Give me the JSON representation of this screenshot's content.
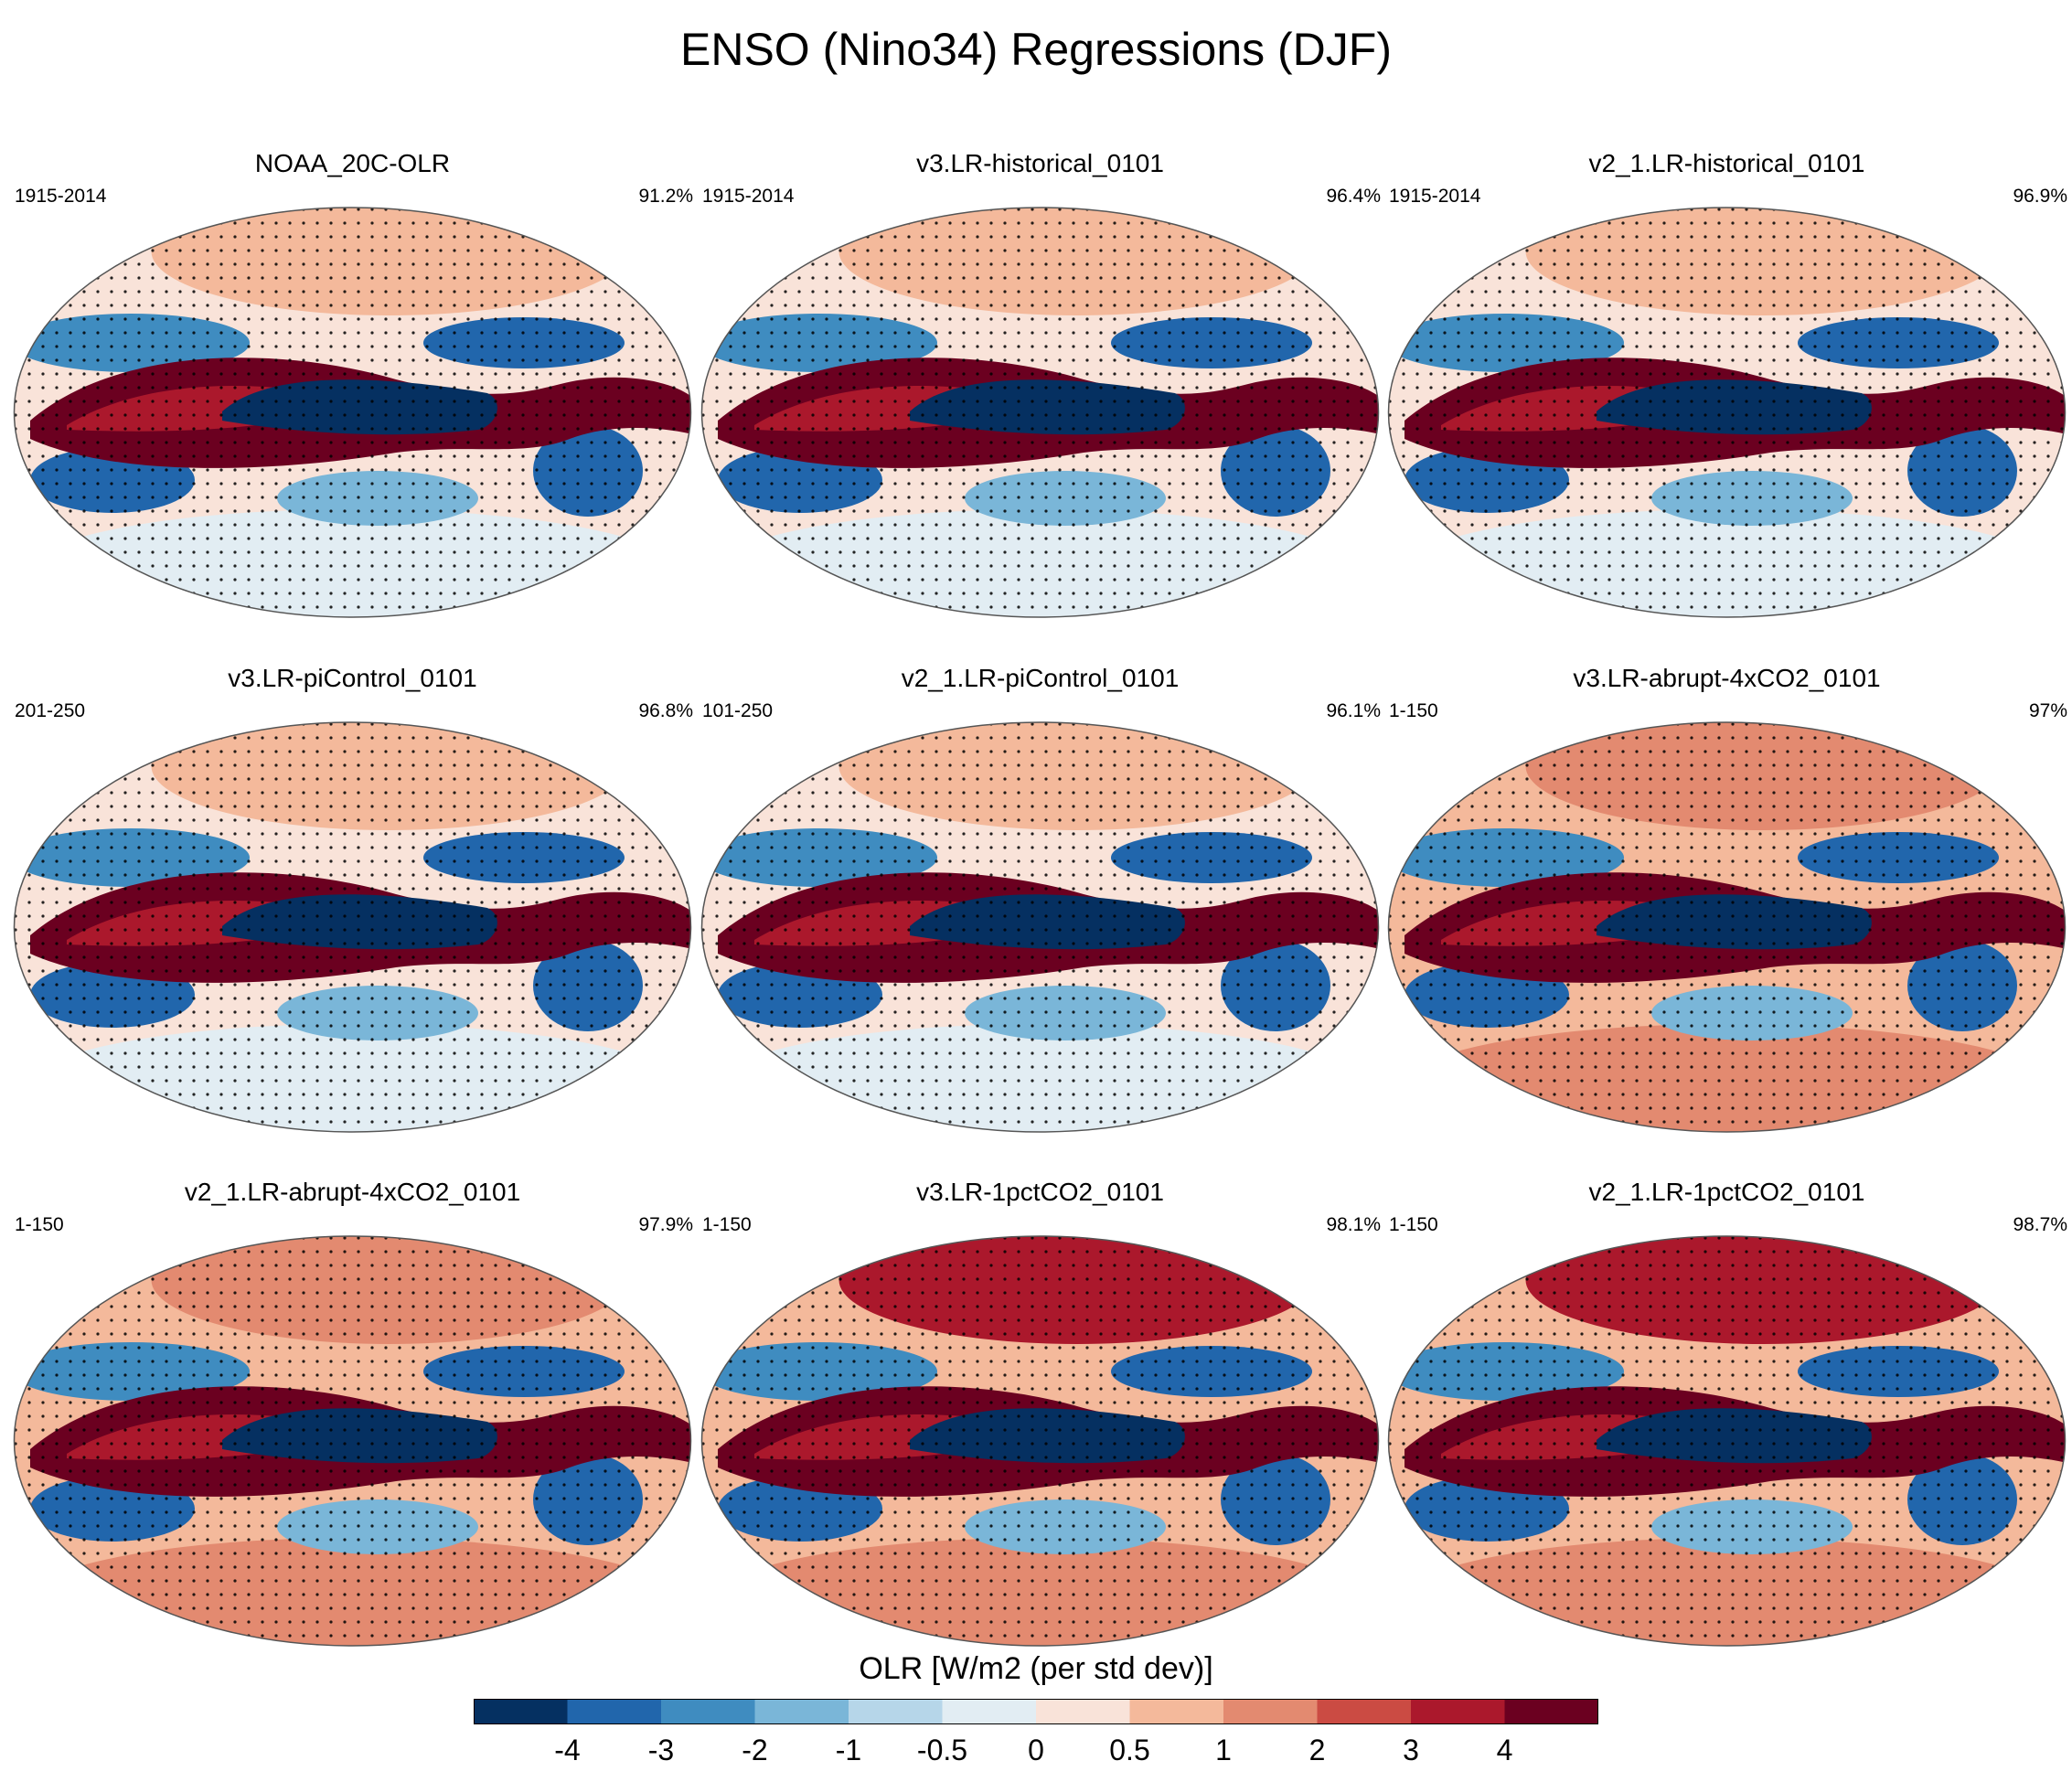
{
  "title": "ENSO (Nino34) Regressions (DJF)",
  "chart_data": {
    "type": "heatmap",
    "title": "ENSO (Nino34) Regressions (DJF)",
    "variable": "OLR [W/m2 (per std dev)]",
    "projection": "Robinson global map",
    "panels": [
      {
        "title": "NOAA_20C-OLR",
        "period": "1915-2014",
        "percent": "91.2%"
      },
      {
        "title": "v3.LR-historical_0101",
        "period": "1915-2014",
        "percent": "96.4%"
      },
      {
        "title": "v2_1.LR-historical_0101",
        "period": "1915-2014",
        "percent": "96.9%"
      },
      {
        "title": "v3.LR-piControl_0101",
        "period": "201-250",
        "percent": "96.8%"
      },
      {
        "title": "v2_1.LR-piControl_0101",
        "period": "101-250",
        "percent": "96.1%"
      },
      {
        "title": "v3.LR-abrupt-4xCO2_0101",
        "period": "1-150",
        "percent": "97%"
      },
      {
        "title": "v2_1.LR-abrupt-4xCO2_0101",
        "period": "1-150",
        "percent": "97.9%"
      },
      {
        "title": "v3.LR-1pctCO2_0101",
        "period": "1-150",
        "percent": "98.1%"
      },
      {
        "title": "v2_1.LR-1pctCO2_0101",
        "period": "1-150",
        "percent": "98.7%"
      }
    ],
    "colorbar": {
      "title": "OLR [W/m2 (per std dev)]",
      "levels": [
        "-4",
        "-3",
        "-2",
        "-1",
        "-0.5",
        "0",
        "0.5",
        "1",
        "2",
        "3",
        "4"
      ],
      "colors": [
        "#053061",
        "#2166ac",
        "#3f8cc0",
        "#7ab6d8",
        "#b6d6e9",
        "#e2edf3",
        "#f9e3d9",
        "#f4b99b",
        "#e38a70",
        "#cb4b43",
        "#ab182c",
        "#6b0020"
      ]
    }
  }
}
